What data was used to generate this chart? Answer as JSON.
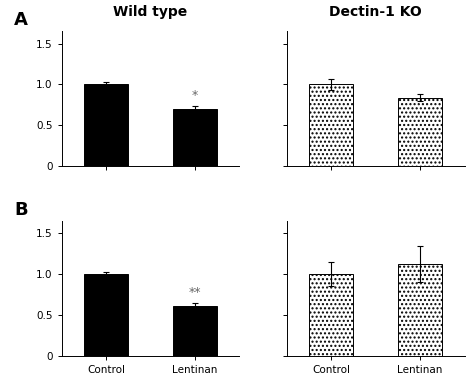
{
  "title_left": "Wild type",
  "title_right": "Dectin-1 KO",
  "panel_labels": [
    "A",
    "B"
  ],
  "categories": [
    "Control",
    "Lentinan"
  ],
  "ylim": [
    0,
    1.65
  ],
  "yticks": [
    0,
    0.5,
    1.0,
    1.5
  ],
  "yticklabels": [
    "0",
    "0.5",
    "1.0",
    "1.5"
  ],
  "panels": {
    "A_left": {
      "values": [
        1.0,
        0.7
      ],
      "errors": [
        0.03,
        0.04
      ],
      "sig": [
        "",
        "*"
      ],
      "black": true
    },
    "A_right": {
      "values": [
        1.0,
        0.84
      ],
      "errors": [
        0.07,
        0.04
      ],
      "sig": [
        "",
        ""
      ],
      "black": false
    },
    "B_left": {
      "values": [
        1.0,
        0.61
      ],
      "errors": [
        0.03,
        0.03
      ],
      "sig": [
        "",
        "**"
      ],
      "black": true
    },
    "B_right": {
      "values": [
        1.0,
        1.12
      ],
      "errors": [
        0.15,
        0.22
      ],
      "sig": [
        "",
        ""
      ],
      "black": false
    }
  },
  "sig_fontsize": 9,
  "tick_fontsize": 7.5,
  "label_fontsize": 7.5,
  "title_fontsize": 10,
  "panel_label_fontsize": 13,
  "bar_width": 0.5,
  "bar_gap": 0.3
}
